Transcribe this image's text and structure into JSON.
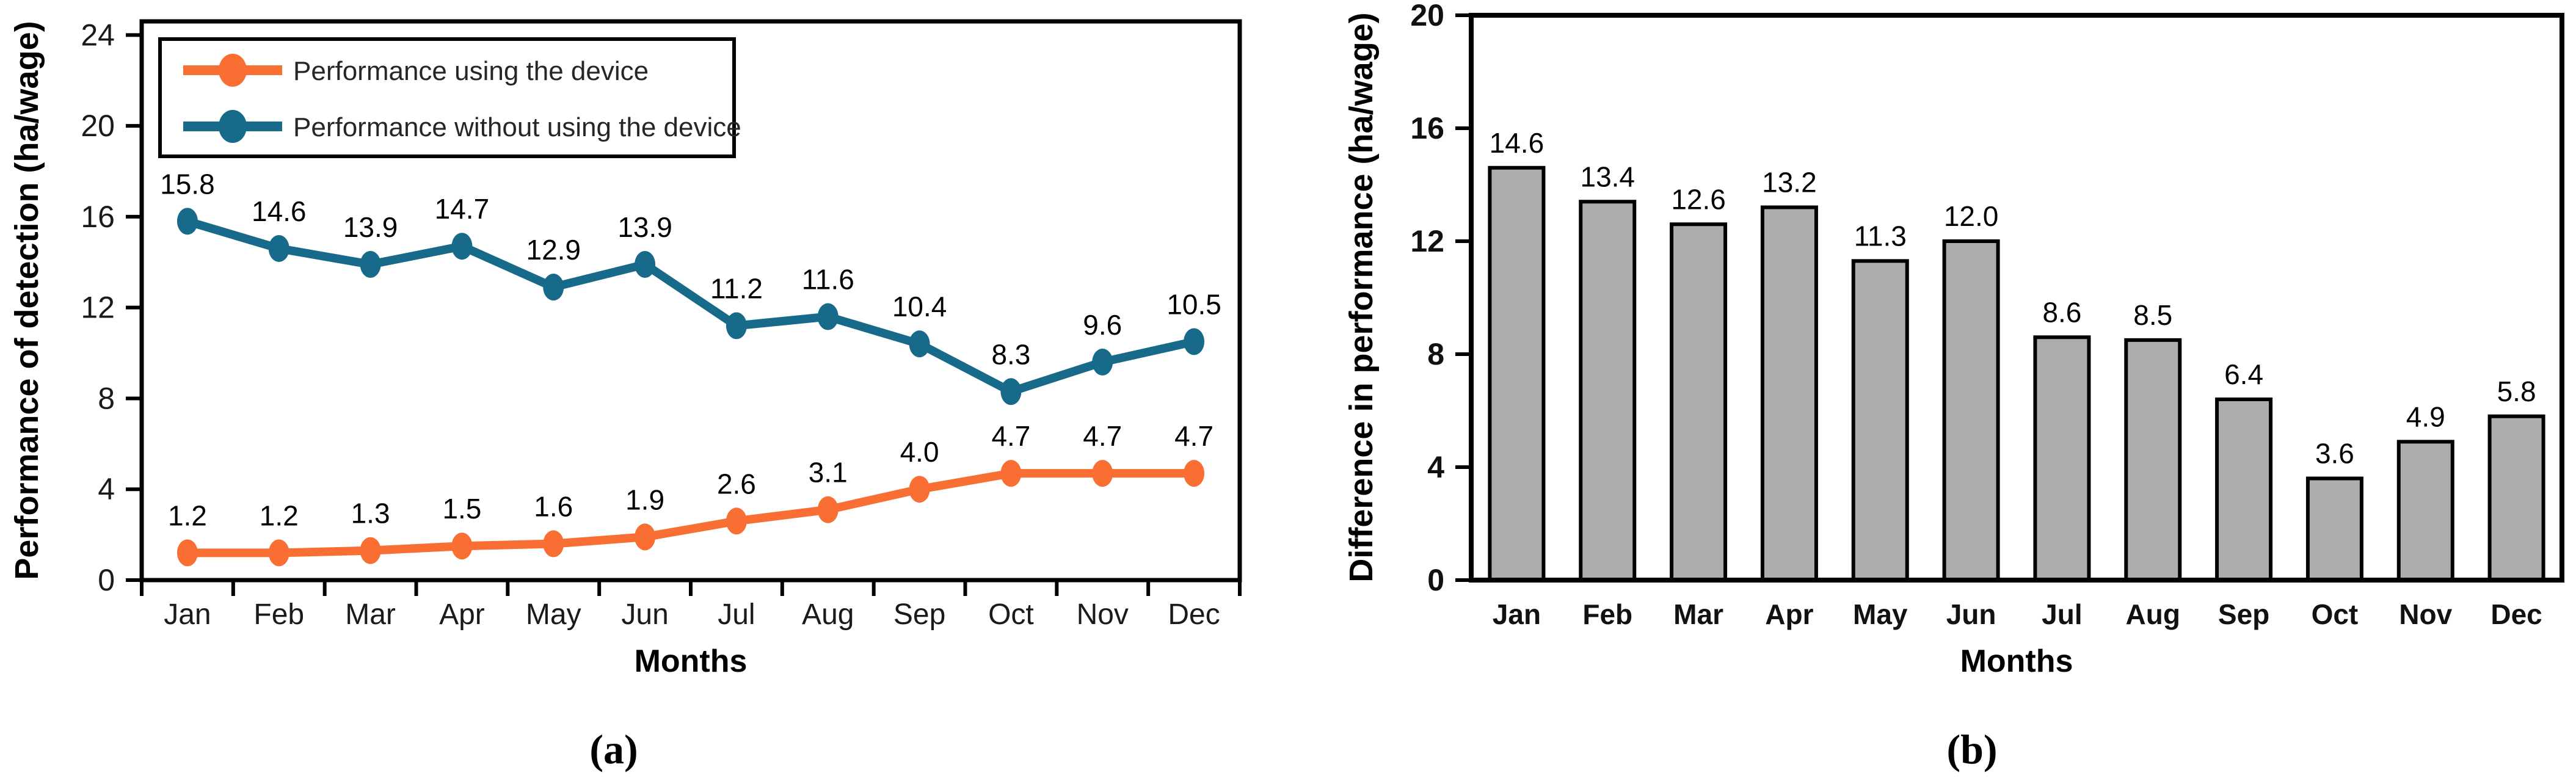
{
  "figure": {
    "captions": {
      "a": "(a)",
      "b": "(b)"
    }
  },
  "chart_data": [
    {
      "type": "line",
      "panel": "a",
      "title": "",
      "xlabel": "Months",
      "ylabel": "Performance of detection (ha/wage)",
      "categories": [
        "Jan",
        "Feb",
        "Mar",
        "Apr",
        "May",
        "Jun",
        "Jul",
        "Aug",
        "Sep",
        "Oct",
        "Nov",
        "Dec"
      ],
      "yticks": [
        0,
        4,
        8,
        12,
        16,
        20,
        24
      ],
      "ylim": [
        0,
        24.6
      ],
      "grid": false,
      "legend_position": "upper-left-boxed",
      "frame_color": "#000000",
      "series": [
        {
          "name": "Performance using the device",
          "color": "#F96E32",
          "values": [
            1.2,
            1.2,
            1.3,
            1.5,
            1.6,
            1.9,
            2.6,
            3.1,
            4.0,
            4.7,
            4.7,
            4.7
          ]
        },
        {
          "name": "Performance without using the device",
          "color": "#176A8A",
          "values": [
            15.8,
            14.6,
            13.9,
            14.7,
            12.9,
            13.9,
            11.2,
            11.6,
            10.4,
            8.3,
            9.6,
            10.5
          ]
        }
      ]
    },
    {
      "type": "bar",
      "panel": "b",
      "title": "",
      "xlabel": "Months",
      "ylabel": "Difference in performance (ha/wage)",
      "categories": [
        "Jan",
        "Feb",
        "Mar",
        "Apr",
        "May",
        "Jun",
        "Jul",
        "Aug",
        "Sep",
        "Oct",
        "Nov",
        "Dec"
      ],
      "yticks": [
        0,
        4,
        8,
        12,
        16,
        20
      ],
      "ylim": [
        0,
        20
      ],
      "grid": false,
      "bar_color": "#ADADAD",
      "bar_edge_color": "#000000",
      "frame_color": "#000000",
      "values": [
        14.6,
        13.4,
        12.6,
        13.2,
        11.3,
        12.0,
        8.6,
        8.5,
        6.4,
        3.6,
        4.9,
        5.8
      ]
    }
  ]
}
